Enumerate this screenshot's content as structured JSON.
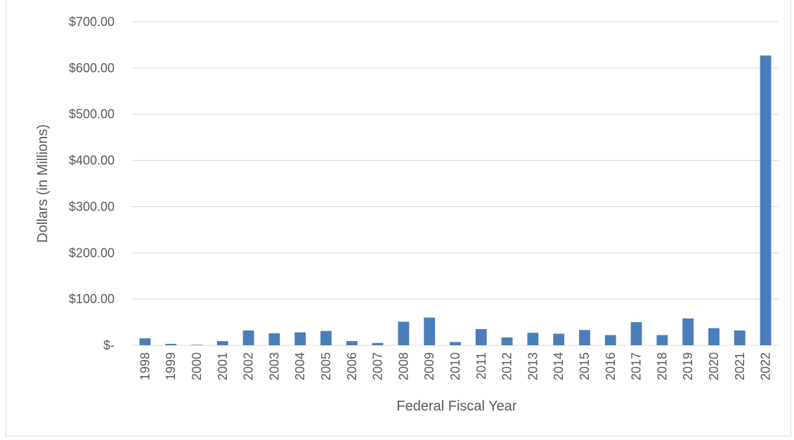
{
  "chart_data": {
    "type": "bar",
    "title": "",
    "xlabel": "Federal Fiscal Year",
    "ylabel": "Dollars (in Millions)",
    "ylim": [
      0,
      700
    ],
    "yticks": [
      0,
      100,
      200,
      300,
      400,
      500,
      600,
      700
    ],
    "ytick_labels": [
      "$-",
      "$100.00",
      "$200.00",
      "$300.00",
      "$400.00",
      "$500.00",
      "$600.00",
      "$700.00"
    ],
    "grid": true,
    "legend": "none",
    "bar_color": "#4a7ebb",
    "categories": [
      "1998",
      "1999",
      "2000",
      "2001",
      "2002",
      "2003",
      "2004",
      "2005",
      "2006",
      "2007",
      "2008",
      "2009",
      "2010",
      "2011",
      "2012",
      "2013",
      "2014",
      "2015",
      "2016",
      "2017",
      "2018",
      "2019",
      "2020",
      "2021",
      "2022"
    ],
    "values": [
      15,
      3,
      1,
      9,
      32,
      26,
      28,
      31,
      9,
      5,
      51,
      60,
      7,
      35,
      17,
      27,
      25,
      33,
      22,
      50,
      22,
      58,
      37,
      32,
      627
    ]
  }
}
